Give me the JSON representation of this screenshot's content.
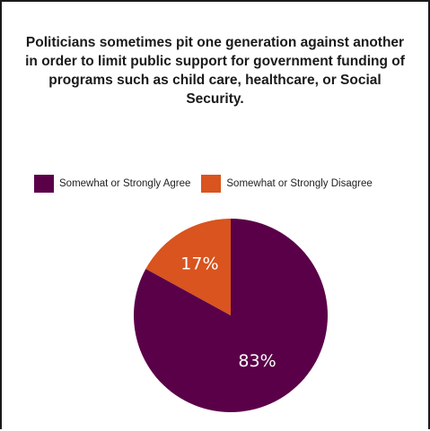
{
  "chart_data": {
    "type": "pie",
    "title": "Politicians sometimes pit one generation against another in order to limit public support for government funding of programs such as child care, healthcare, or Social Security.",
    "legend_position": "top-left",
    "slices": [
      {
        "name": "Somewhat or Strongly Agree",
        "value": 83,
        "label": "83%",
        "color": "#5a0048"
      },
      {
        "name": "Somewhat or Strongly Disagree",
        "value": 17,
        "label": "17%",
        "color": "#d9541e"
      }
    ]
  }
}
